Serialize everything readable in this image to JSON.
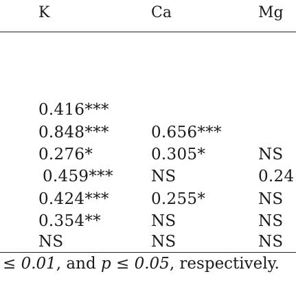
{
  "table": {
    "headers": [
      "K",
      "Ca",
      "Mg"
    ],
    "rows": [
      [
        "0.416***",
        "",
        ""
      ],
      [
        "0.848***",
        "0.656***",
        ""
      ],
      [
        "0.276*",
        "0.305*",
        "NS"
      ],
      [
        "0.459***",
        "NS",
        "0.24"
      ],
      [
        "0.424***",
        "0.255*",
        "NS"
      ],
      [
        "0.354**",
        "NS",
        "NS"
      ],
      [
        "NS",
        "NS",
        "NS"
      ]
    ]
  },
  "footnote": {
    "part1": "≤ 0.01",
    "part2": ", and ",
    "part3": "p ≤ 0.05",
    "part4": ", respectively."
  }
}
